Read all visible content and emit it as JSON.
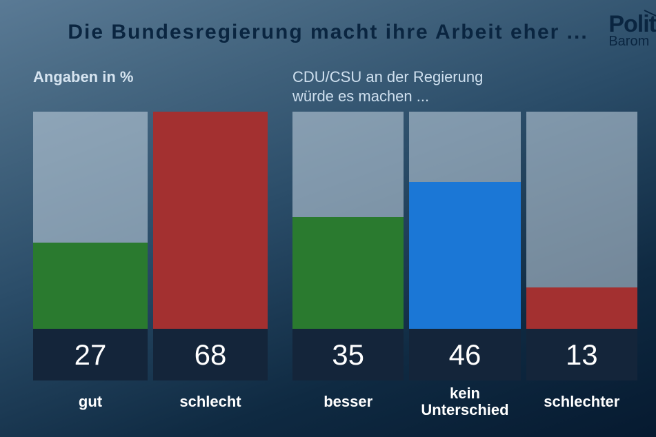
{
  "title": "Die Bundesregierung macht ihre Arbeit eher ...",
  "logo": {
    "top": "Polit",
    "bottom": "Barom"
  },
  "colors": {
    "bar_bg": "rgba(200,215,228,0.55)",
    "value_box_bg": "#14253a",
    "text_light": "#ffffff"
  },
  "left": {
    "caption": "Angaben in %",
    "chart": {
      "type": "bar",
      "max": 68,
      "bars": [
        {
          "label": "gut",
          "value": 27,
          "color": "#2a7a2f"
        },
        {
          "label": "schlecht",
          "value": 68,
          "color": "#a33030"
        }
      ]
    }
  },
  "right": {
    "caption": "CDU/CSU an der Regierung\nwürde es machen ...",
    "chart": {
      "type": "bar",
      "max": 68,
      "bars": [
        {
          "label": "besser",
          "value": 35,
          "color": "#2a7a2f"
        },
        {
          "label": "kein\nUnterschied",
          "value": 46,
          "color": "#1b77d6"
        },
        {
          "label": "schlechter",
          "value": 13,
          "color": "#a33030"
        }
      ]
    }
  }
}
